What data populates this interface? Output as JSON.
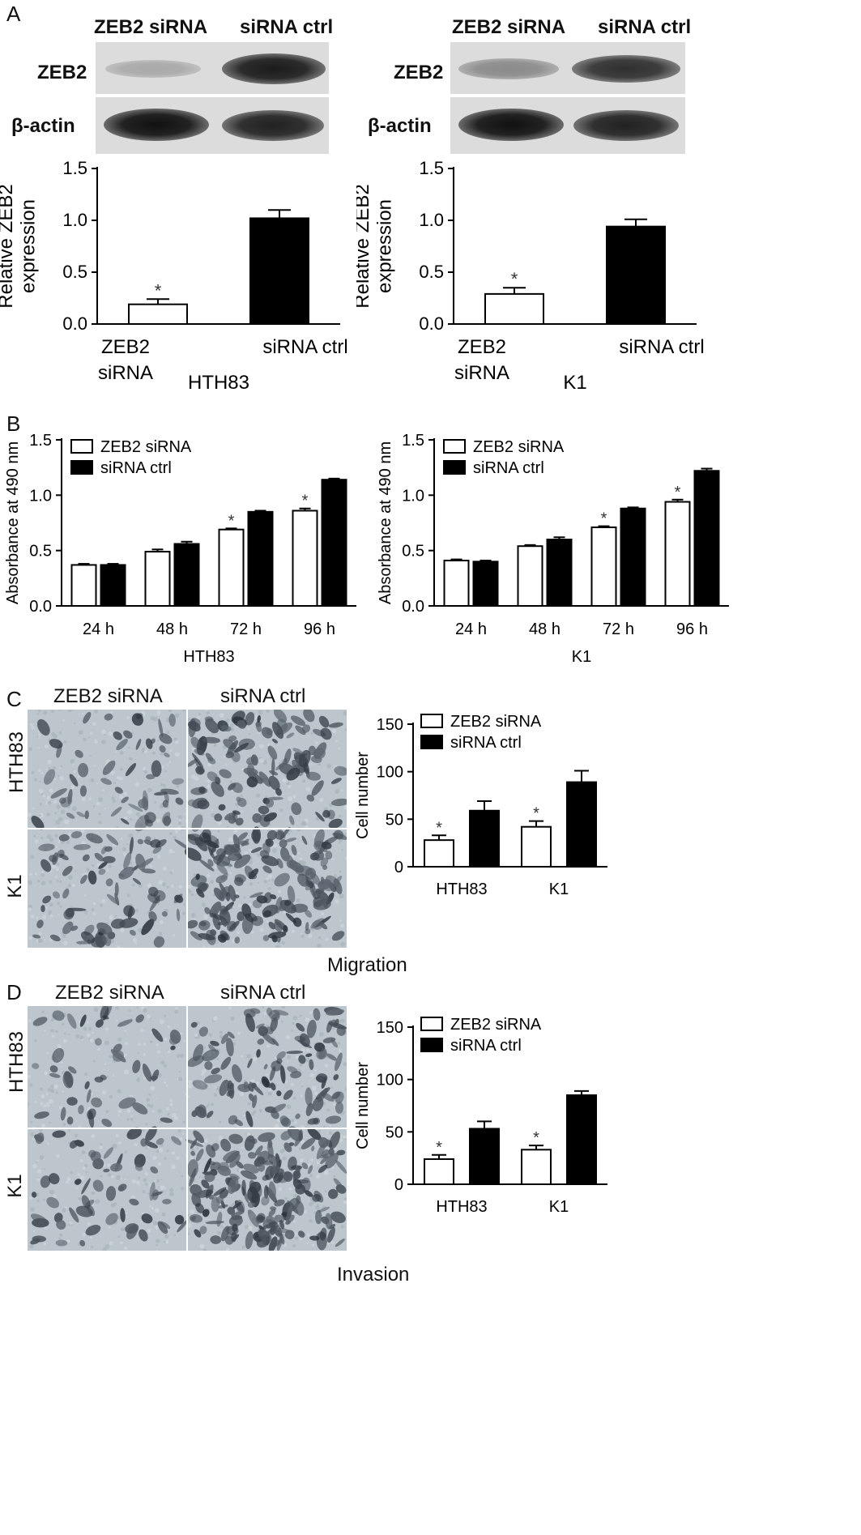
{
  "panels": {
    "A": "A",
    "B": "B",
    "C": "C",
    "D": "D"
  },
  "panel_a": {
    "col_labels": [
      "ZEB2 siRNA",
      "siRNA ctrl"
    ],
    "row_labels": [
      "ZEB2",
      "β-actin"
    ]
  },
  "micro": {
    "col_labels": [
      "ZEB2 siRNA",
      "siRNA ctrl"
    ],
    "row_labels": [
      "HTH83",
      "K1"
    ],
    "migration_caption": "Migration",
    "invasion_caption": "Invasion"
  },
  "chart_data": [
    {
      "id": "A-HTH83",
      "type": "bar",
      "categories": [
        "ZEB2 siRNA",
        "siRNA ctrl"
      ],
      "category_lines": [
        [
          "ZEB2",
          "siRNA"
        ],
        [
          "siRNA ctrl"
        ]
      ],
      "values": [
        0.19,
        1.02
      ],
      "errors": [
        0.05,
        0.08
      ],
      "significant": [
        true,
        false
      ],
      "fills": [
        "#ffffff",
        "#000000"
      ],
      "ylabel": "Relative ZEB2 expression",
      "ylabel_lines": [
        "Relative ZEB2",
        "expression"
      ],
      "xlabel": "HTH83",
      "ylim": [
        0,
        1.5
      ],
      "yticks": [
        "0.0",
        "0.5",
        "1.0",
        "1.5"
      ]
    },
    {
      "id": "A-K1",
      "type": "bar",
      "categories": [
        "ZEB2 siRNA",
        "siRNA ctrl"
      ],
      "category_lines": [
        [
          "ZEB2",
          "siRNA"
        ],
        [
          "siRNA ctrl"
        ]
      ],
      "values": [
        0.29,
        0.94
      ],
      "errors": [
        0.06,
        0.07
      ],
      "significant": [
        true,
        false
      ],
      "fills": [
        "#ffffff",
        "#000000"
      ],
      "ylabel": "Relative ZEB2 expression",
      "ylabel_lines": [
        "Relative ZEB2",
        "expression"
      ],
      "xlabel": "K1",
      "ylim": [
        0,
        1.5
      ],
      "yticks": [
        "0.0",
        "0.5",
        "1.0",
        "1.5"
      ]
    },
    {
      "id": "B-HTH83",
      "type": "bar",
      "categories": [
        "24 h",
        "48 h",
        "72 h",
        "96 h"
      ],
      "series": [
        {
          "name": "ZEB2 siRNA",
          "values": [
            0.37,
            0.49,
            0.69,
            0.86
          ],
          "errors": [
            0.01,
            0.02,
            0.01,
            0.02
          ],
          "significant": [
            false,
            false,
            true,
            true
          ],
          "fill": "#ffffff"
        },
        {
          "name": "siRNA ctrl",
          "values": [
            0.37,
            0.56,
            0.85,
            1.14
          ],
          "errors": [
            0.01,
            0.02,
            0.01,
            0.01
          ],
          "significant": [
            false,
            false,
            false,
            false
          ],
          "fill": "#000000"
        }
      ],
      "ylabel": "Absorbance at 490 nm",
      "xlabel": "HTH83",
      "ylim": [
        0,
        1.5
      ],
      "yticks": [
        "0.0",
        "0.5",
        "1.0",
        "1.5"
      ],
      "legend": "top-left"
    },
    {
      "id": "B-K1",
      "type": "bar",
      "categories": [
        "24 h",
        "48 h",
        "72 h",
        "96 h"
      ],
      "series": [
        {
          "name": "ZEB2 siRNA",
          "values": [
            0.41,
            0.54,
            0.71,
            0.94
          ],
          "errors": [
            0.01,
            0.01,
            0.01,
            0.02
          ],
          "significant": [
            false,
            false,
            true,
            true
          ],
          "fill": "#ffffff"
        },
        {
          "name": "siRNA ctrl",
          "values": [
            0.4,
            0.6,
            0.88,
            1.22
          ],
          "errors": [
            0.01,
            0.02,
            0.01,
            0.02
          ],
          "significant": [
            false,
            false,
            false,
            false
          ],
          "fill": "#000000"
        }
      ],
      "ylabel": "Absorbance at 490 nm",
      "xlabel": "K1",
      "ylim": [
        0,
        1.5
      ],
      "yticks": [
        "0.0",
        "0.5",
        "1.0",
        "1.5"
      ],
      "legend": "top-left"
    },
    {
      "id": "C",
      "type": "bar",
      "categories": [
        "HTH83",
        "K1"
      ],
      "series": [
        {
          "name": "ZEB2 siRNA",
          "values": [
            28,
            42
          ],
          "errors": [
            5,
            6
          ],
          "significant": [
            true,
            true
          ],
          "fill": "#ffffff"
        },
        {
          "name": "siRNA ctrl",
          "values": [
            59,
            89
          ],
          "errors": [
            10,
            12
          ],
          "significant": [
            false,
            false
          ],
          "fill": "#000000"
        }
      ],
      "ylabel": "Cell number",
      "xlabel": "",
      "ylim": [
        0,
        150
      ],
      "yticks": [
        "0",
        "50",
        "100",
        "150"
      ],
      "legend": "top-left"
    },
    {
      "id": "D",
      "type": "bar",
      "categories": [
        "HTH83",
        "K1"
      ],
      "series": [
        {
          "name": "ZEB2 siRNA",
          "values": [
            24,
            33
          ],
          "errors": [
            4,
            4
          ],
          "significant": [
            true,
            true
          ],
          "fill": "#ffffff"
        },
        {
          "name": "siRNA ctrl",
          "values": [
            53,
            85
          ],
          "errors": [
            7,
            4
          ],
          "significant": [
            false,
            false
          ],
          "fill": "#000000"
        }
      ],
      "ylabel": "Cell number",
      "xlabel": "",
      "ylim": [
        0,
        150
      ],
      "yticks": [
        "0",
        "50",
        "100",
        "150"
      ],
      "legend": "top-left"
    }
  ]
}
